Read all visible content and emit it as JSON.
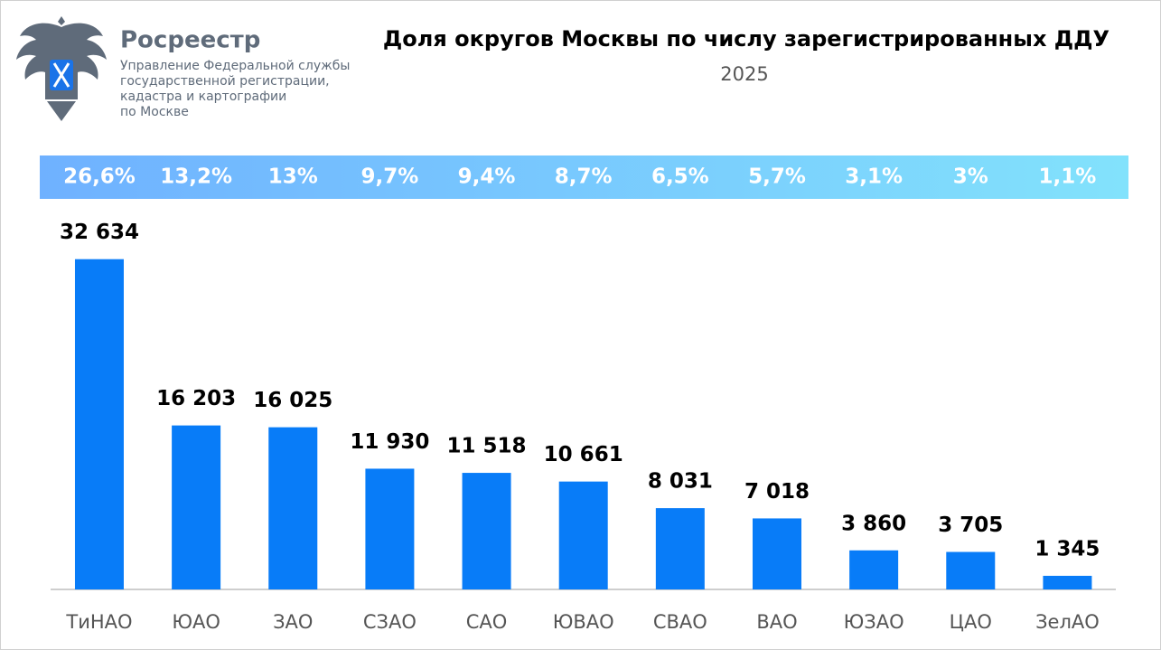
{
  "header": {
    "brand": "Росреестр",
    "org_lines": [
      "Управление Федеральной службы",
      "государственной регистрации,",
      "кадастра и картографии",
      "по Москве"
    ]
  },
  "chart_data": {
    "type": "bar",
    "title": "Доля округов Москвы по числу зарегистрированных ДДУ",
    "subtitle": "2025",
    "categories": [
      "ТиНАО",
      "ЮАО",
      "ЗАО",
      "СЗАО",
      "САО",
      "ЮВАО",
      "СВАО",
      "ВАО",
      "ЮЗАО",
      "ЦАО",
      "ЗелАО"
    ],
    "values": [
      32634,
      16203,
      16025,
      11930,
      11518,
      10661,
      8031,
      7018,
      3860,
      3705,
      1345
    ],
    "value_labels": [
      "32 634",
      "16 203",
      "16 025",
      "11 930",
      "11 518",
      "10 661",
      "8 031",
      "7 018",
      "3 860",
      "3 705",
      "1 345"
    ],
    "shares": {
      "values": [
        26.6,
        13.2,
        13,
        9.7,
        9.4,
        8.7,
        6.5,
        5.7,
        3.1,
        3,
        1.1
      ],
      "value_labels": [
        "26,6%",
        "13,2%",
        "13%",
        "9,7%",
        "9,4%",
        "8,7%",
        "6,5%",
        "5,7%",
        "3,1%",
        "3%",
        "1,1%"
      ]
    },
    "color": "#087cf8",
    "ylim": [
      0,
      36000
    ]
  }
}
